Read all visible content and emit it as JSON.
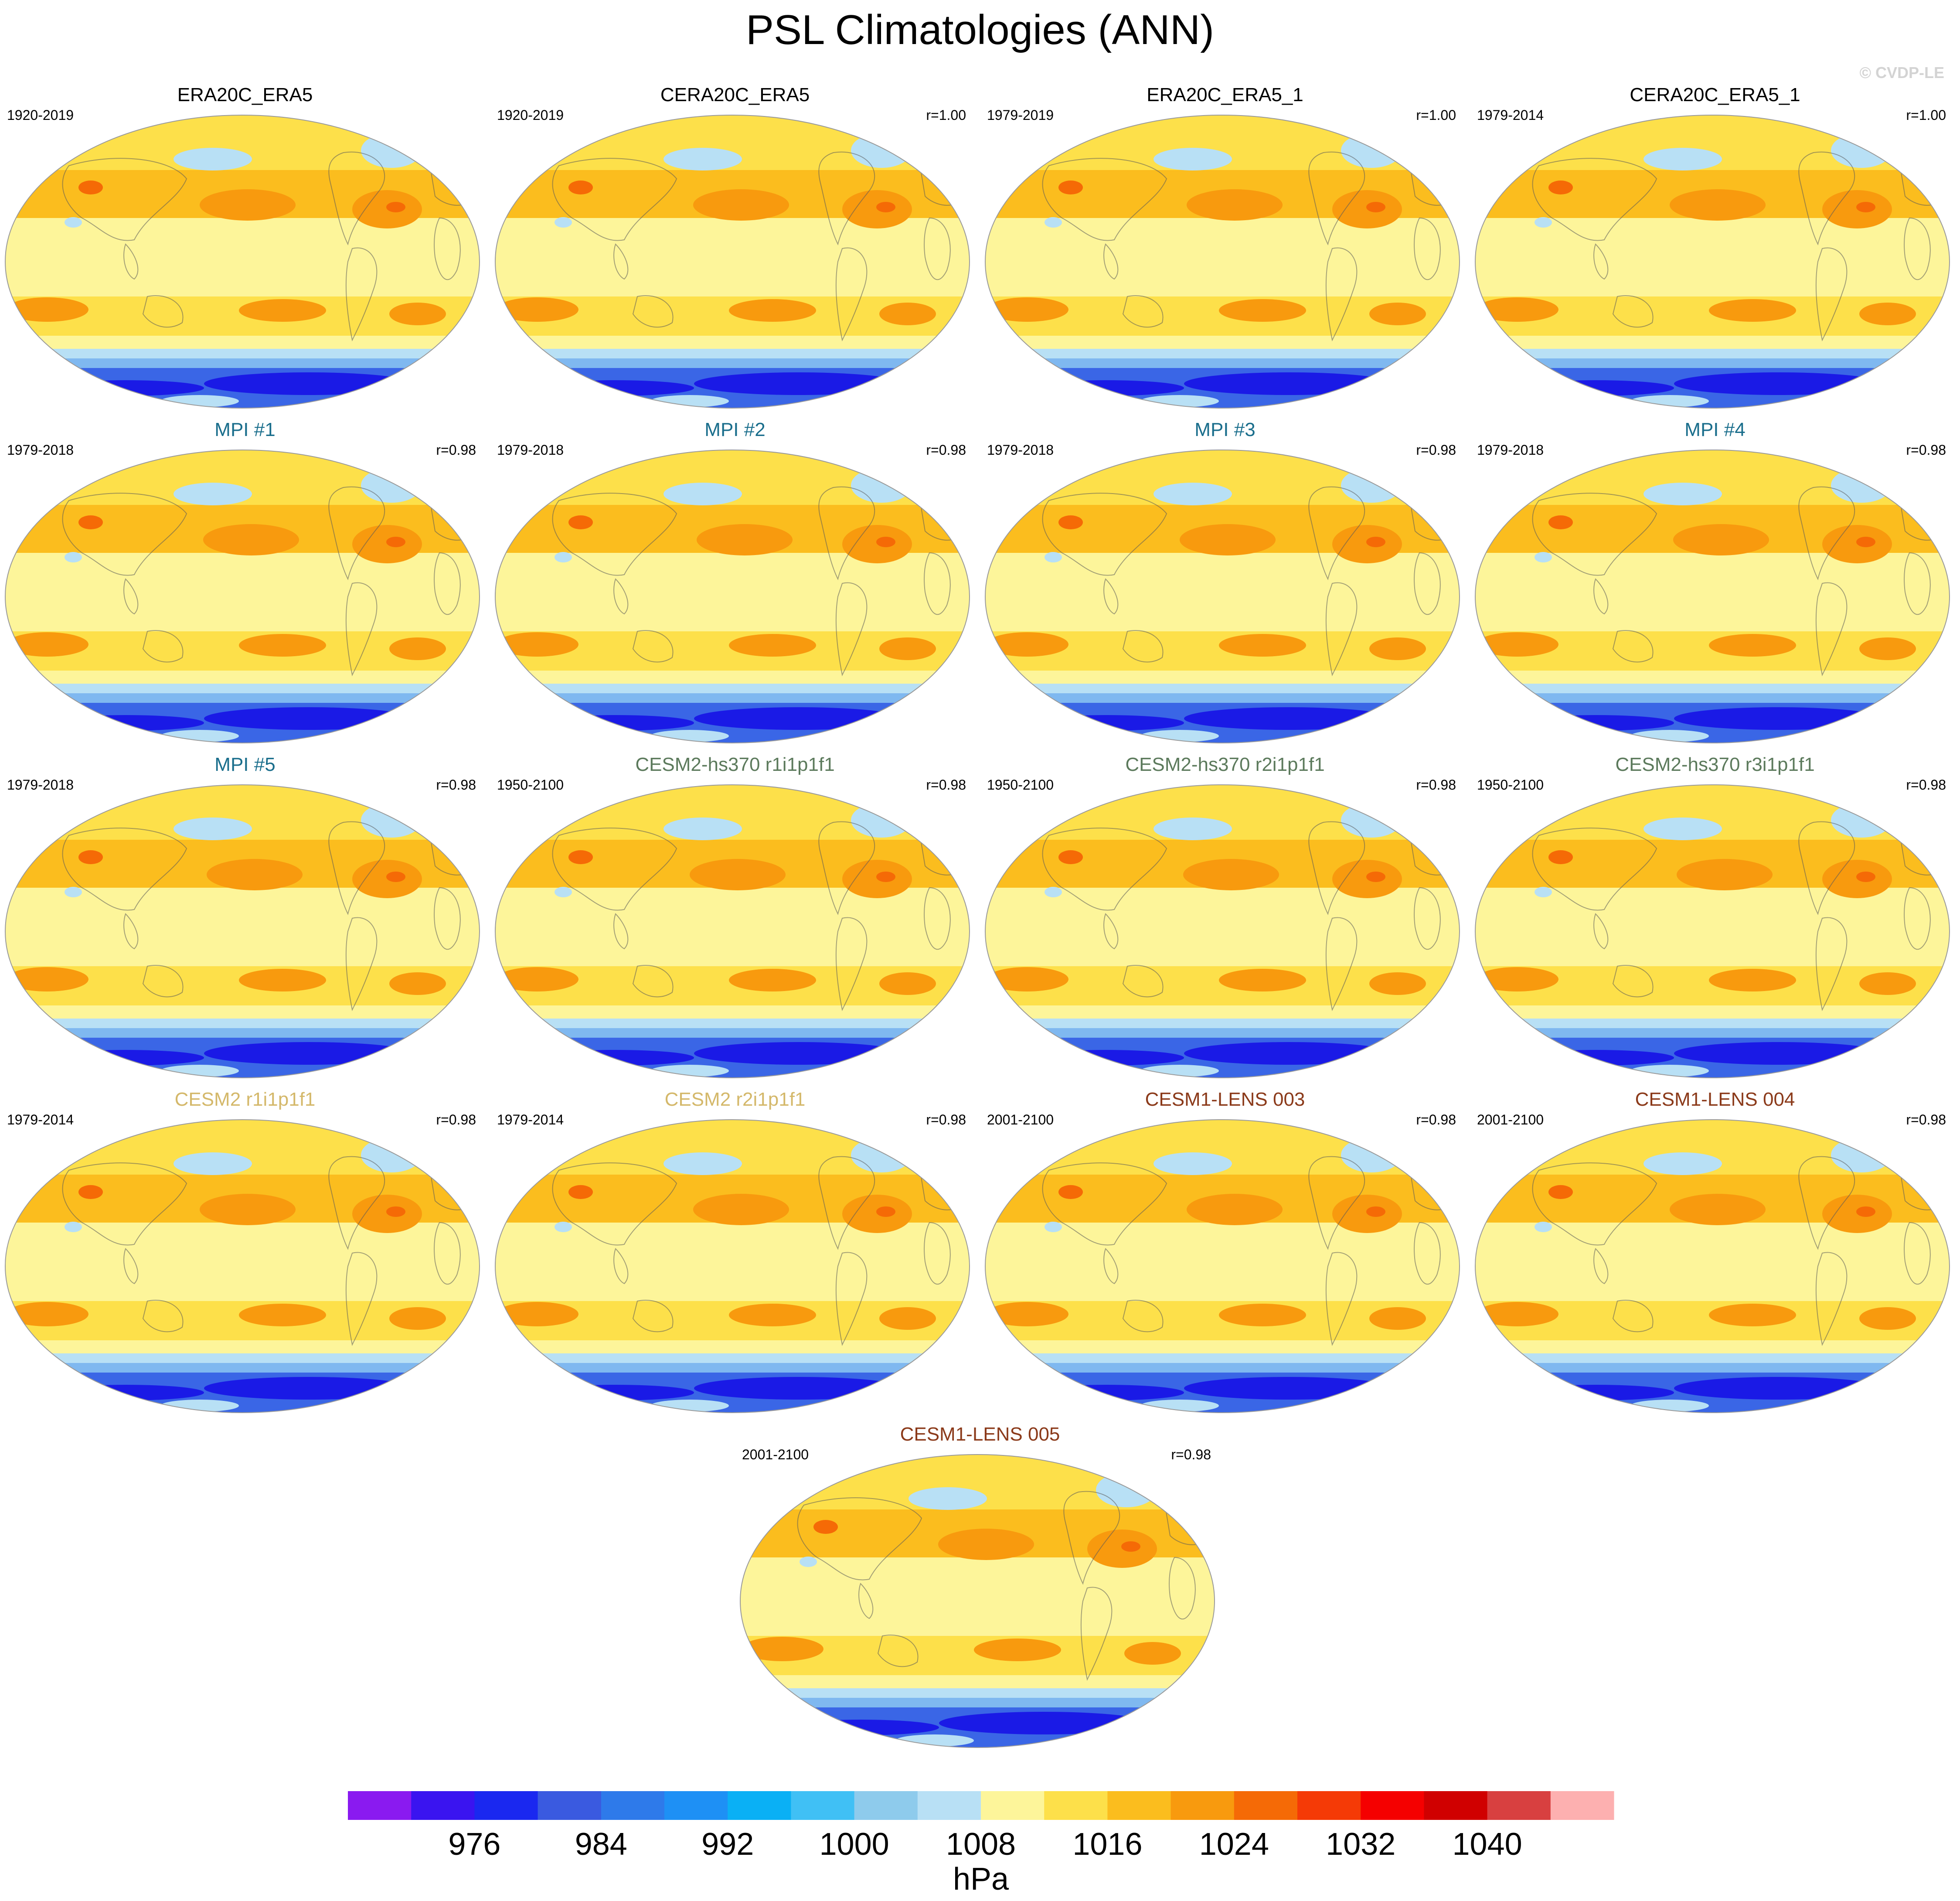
{
  "title": "PSL Climatologies (ANN)",
  "watermark": "© CVDP-LE",
  "colors": {
    "deep_low": "#1a1ae6",
    "low": "#3a66e6",
    "mid_low": "#7fb8f0",
    "lightblue": "#b8e0f5",
    "pale": "#fdf59a",
    "yellow": "#fde04a",
    "gold": "#fbbd1e",
    "orange": "#f89a0e",
    "darkorange": "#f56a06"
  },
  "panels": [
    {
      "title": "ERA20C_ERA5",
      "years": "1920-2019",
      "r": "",
      "title_color": "#000000"
    },
    {
      "title": "CERA20C_ERA5",
      "years": "1920-2019",
      "r": "r=1.00",
      "title_color": "#000000"
    },
    {
      "title": "ERA20C_ERA5_1",
      "years": "1979-2019",
      "r": "r=1.00",
      "title_color": "#000000"
    },
    {
      "title": "CERA20C_ERA5_1",
      "years": "1979-2014",
      "r": "r=1.00",
      "title_color": "#000000"
    },
    {
      "title": "MPI #1",
      "years": "1979-2018",
      "r": "r=0.98",
      "title_color": "#1a6e8c"
    },
    {
      "title": "MPI #2",
      "years": "1979-2018",
      "r": "r=0.98",
      "title_color": "#1a6e8c"
    },
    {
      "title": "MPI #3",
      "years": "1979-2018",
      "r": "r=0.98",
      "title_color": "#1a6e8c"
    },
    {
      "title": "MPI #4",
      "years": "1979-2018",
      "r": "r=0.98",
      "title_color": "#1a6e8c"
    },
    {
      "title": "MPI #5",
      "years": "1979-2018",
      "r": "r=0.98",
      "title_color": "#1a6e8c"
    },
    {
      "title": "CESM2-hs370 r1i1p1f1",
      "years": "1950-2100",
      "r": "r=0.98",
      "title_color": "#5c7a5c"
    },
    {
      "title": "CESM2-hs370 r2i1p1f1",
      "years": "1950-2100",
      "r": "r=0.98",
      "title_color": "#5c7a5c"
    },
    {
      "title": "CESM2-hs370 r3i1p1f1",
      "years": "1950-2100",
      "r": "r=0.98",
      "title_color": "#5c7a5c"
    },
    {
      "title": "CESM2 r1i1p1f1",
      "years": "1979-2014",
      "r": "r=0.98",
      "title_color": "#d4b86a"
    },
    {
      "title": "CESM2 r2i1p1f1",
      "years": "1979-2014",
      "r": "r=0.98",
      "title_color": "#d4b86a"
    },
    {
      "title": "CESM1-LENS 003",
      "years": "2001-2100",
      "r": "r=0.98",
      "title_color": "#8b3a1a"
    },
    {
      "title": "CESM1-LENS 004",
      "years": "2001-2100",
      "r": "r=0.98",
      "title_color": "#8b3a1a"
    },
    {
      "title": "CESM1-LENS 005",
      "years": "2001-2100",
      "r": "r=0.98",
      "title_color": "#8b3a1a"
    }
  ],
  "chart_data": {
    "type": "heatmap",
    "title": "PSL Climatologies (ANN)",
    "colorbar": {
      "label": "hPa",
      "tick_labels": [
        "976",
        "984",
        "992",
        "1000",
        "1008",
        "1016",
        "1024",
        "1032",
        "1040"
      ],
      "tick_values": [
        976,
        984,
        992,
        1000,
        1008,
        1016,
        1024,
        1032,
        1040
      ],
      "boundaries": [
        972,
        976,
        980,
        984,
        988,
        992,
        996,
        1000,
        1004,
        1008,
        1012,
        1016,
        1020,
        1024,
        1028,
        1032,
        1036,
        1040,
        1044
      ],
      "colors": [
        "#8a1af0",
        "#3a14f0",
        "#1a28f0",
        "#3a5ae0",
        "#2e7aea",
        "#1e90f5",
        "#0ab0f5",
        "#40c0f5",
        "#8ecbec",
        "#b8e0f5",
        "#fdf59a",
        "#fde04a",
        "#fbbd1e",
        "#f89a0e",
        "#f56a06",
        "#f53a06",
        "#f50000",
        "#d00000",
        "#d84040",
        "#fdb0b0"
      ]
    }
  }
}
